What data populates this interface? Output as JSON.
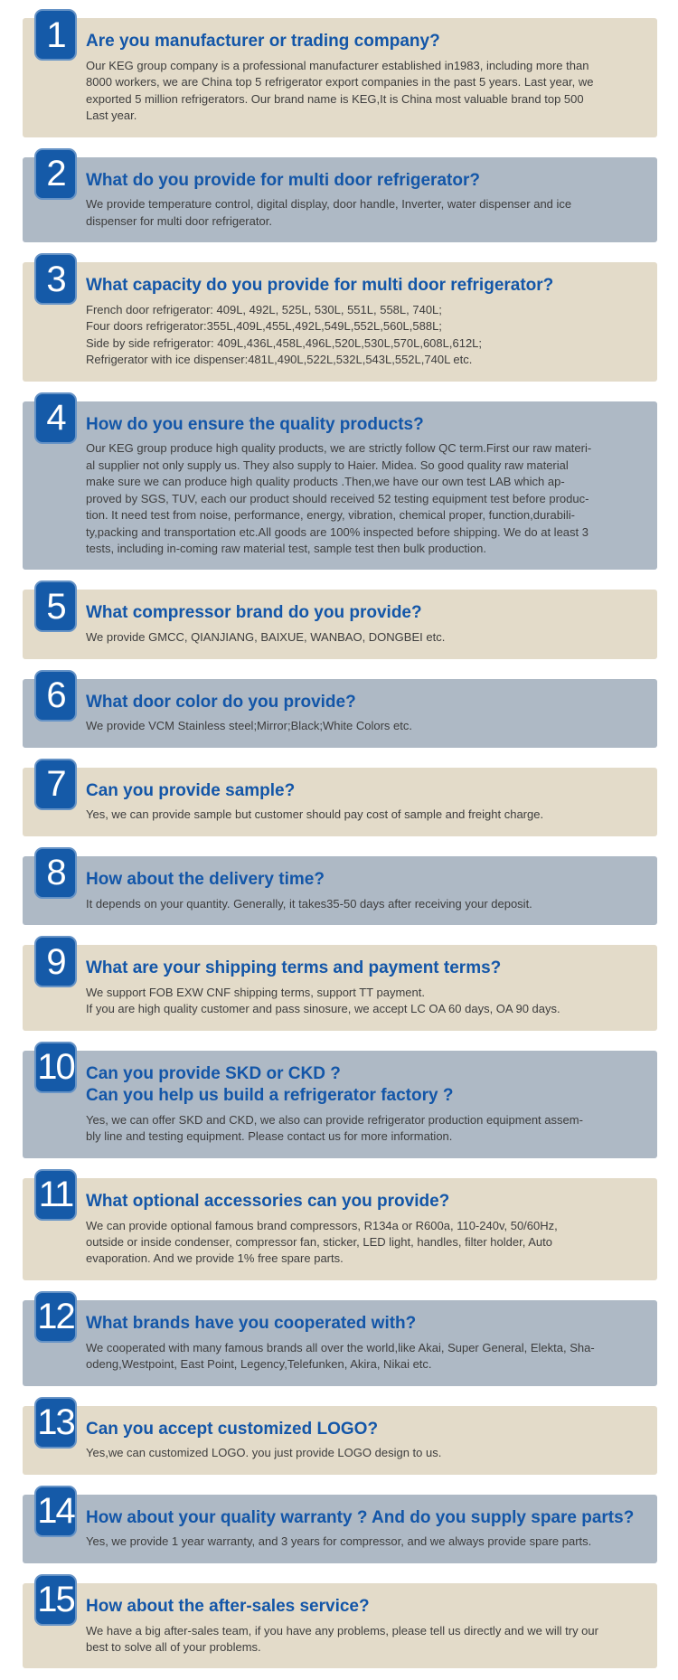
{
  "colors": {
    "badge_blue": "#155aa8",
    "question_blue": "#1356a8",
    "answer_text": "#3d3d3d",
    "card_beige": "#e3dbc9",
    "card_bluegray": "#aeb9c5",
    "page_background": "#ffffff"
  },
  "faq": {
    "items": [
      {
        "number": "1",
        "question": "Are you manufacturer or trading company?",
        "answer": "Our KEG group company is a professional manufacturer established in1983, including more than\n8000 workers, we are China top 5 refrigerator export companies in the past 5 years. Last year, we\nexported 5 million refrigerators. Our brand name is KEG,It is China most valuable brand top 500\nLast year."
      },
      {
        "number": "2",
        "question": "What do you provide for multi door refrigerator?",
        "answer": "We provide temperature control, digital display, door handle, Inverter, water dispenser and ice\ndispenser for multi door refrigerator."
      },
      {
        "number": "3",
        "question": "What capacity do you provide for multi door refrigerator?",
        "answer": "French door refrigerator: 409L, 492L, 525L, 530L, 551L, 558L, 740L;\nFour doors refrigerator:355L,409L,455L,492L,549L,552L,560L,588L;\nSide by side refrigerator: 409L,436L,458L,496L,520L,530L,570L,608L,612L;\nRefrigerator with ice dispenser:481L,490L,522L,532L,543L,552L,740L etc."
      },
      {
        "number": "4",
        "question": "How do you ensure the quality products?",
        "answer": "Our KEG group produce high quality products, we are strictly follow  QC term.First our raw materi-\nal supplier not only supply us. They also supply to Haier. Midea. So good quality raw material\nmake sure we can produce high quality products .Then,we have our own test LAB which  ap-\nproved by SGS, TUV, each our product should received 52 testing equipment test before produc-\ntion. It need test from noise, performance, energy, vibration, chemical proper, function,durabili-\nty,packing and transportation etc.All goods are 100% inspected before shipping. We do at least 3\ntests, including in-coming raw material test, sample test then bulk production."
      },
      {
        "number": "5",
        "question": "What compressor brand do you provide?",
        "answer": "We provide GMCC, QIANJIANG, BAIXUE, WANBAO, DONGBEI etc."
      },
      {
        "number": "6",
        "question": "What door color do you provide?",
        "answer": "We provide VCM Stainless steel;Mirror;Black;White Colors etc."
      },
      {
        "number": "7",
        "question": "Can you provide sample?",
        "answer": "Yes, we can provide sample but customer should pay cost of sample and freight charge."
      },
      {
        "number": "8",
        "question": "How about the delivery time?",
        "answer": "It depends on your quantity. Generally, it takes35-50 days after receiving your deposit."
      },
      {
        "number": "9",
        "question": "What are your shipping terms and payment terms?",
        "answer": "We support FOB EXW CNF shipping terms, support TT payment.\nIf you are high quality customer and pass sinosure, we accept LC OA 60 days, OA 90 days."
      },
      {
        "number": "10",
        "question": "Can you provide SKD or CKD ?\nCan you help us build a refrigerator factory ?",
        "answer": "Yes, we can offer SKD and CKD, we also can provide refrigerator production equipment assem-\nbly line and testing equipment. Please contact us for more information."
      },
      {
        "number": "11",
        "question": "What optional accessories can you provide?",
        "answer": "We can provide optional famous brand compressors,  R134a or R600a, 110-240v, 50/60Hz,\noutside or inside condenser, compressor fan, sticker, LED light, handles, filter holder, Auto\nevaporation. And we provide 1% free spare parts."
      },
      {
        "number": "12",
        "question": "What brands have you cooperated with?",
        "answer": "We cooperated with many famous brands all over the world,like Akai, Super General, Elekta, Sha-\nodeng,Westpoint, East Point, Legency,Telefunken, Akira, Nikai etc."
      },
      {
        "number": "13",
        "question": "Can you accept customized LOGO?",
        "answer": "Yes,we can customized LOGO. you just provide LOGO design to us."
      },
      {
        "number": "14",
        "question": "How about your quality warranty ? And do you supply spare parts?",
        "answer": "Yes, we provide 1 year warranty, and 3 years for compressor, and we always provide spare parts."
      },
      {
        "number": "15",
        "question": "How about the after-sales service?",
        "answer": "We have a big after-sales team, if you have any problems, please tell us directly and we will try our\nbest to solve all of your problems."
      }
    ]
  }
}
